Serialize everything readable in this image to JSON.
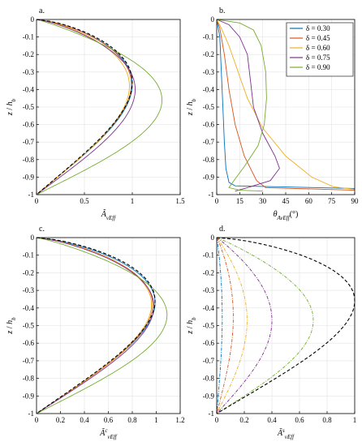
{
  "colors": {
    "0.30": "#0072BD",
    "0.45": "#D95319",
    "0.60": "#EDB120",
    "0.75": "#7E2F8E",
    "0.90": "#77AC30",
    "reference": "#000000"
  },
  "legend": {
    "entries": [
      "δ = 0.30",
      "δ = 0.45",
      "δ = 0.60",
      "δ = 0.75",
      "δ = 0.90"
    ],
    "placement": "top-right of panel b"
  },
  "chart_data": [
    {
      "type": "line",
      "panel_label": "a.",
      "xlabel": "Ã_vEff",
      "ylabel": "z / h_b",
      "xlim": [
        0,
        1.5
      ],
      "ylim": [
        -1,
        0
      ],
      "xticks": [
        "0",
        "0.5",
        "1",
        "1.5"
      ],
      "yticks": [
        "0",
        "-0.1",
        "-0.2",
        "-0.3",
        "-0.4",
        "-0.5",
        "-0.6",
        "-0.7",
        "-0.8",
        "-0.9",
        "-1"
      ],
      "grid": true,
      "series": [
        {
          "key": "0.30",
          "style": "solid",
          "peak": 1.0,
          "zpeak": -0.37
        },
        {
          "key": "0.45",
          "style": "solid",
          "peak": 0.99,
          "zpeak": -0.37
        },
        {
          "key": "0.60",
          "style": "solid",
          "peak": 0.97,
          "zpeak": -0.38
        },
        {
          "key": "0.75",
          "style": "solid",
          "peak": 1.03,
          "zpeak": -0.4
        },
        {
          "key": "0.90",
          "style": "solid",
          "peak": 1.31,
          "zpeak": -0.46
        },
        {
          "key": "reference",
          "style": "dashed",
          "peak": 1.0,
          "zpeak": -0.36
        }
      ]
    },
    {
      "type": "line",
      "panel_label": "b.",
      "xlabel": "θ_AvEff (°)",
      "ylabel": "z / h_b",
      "xlim": [
        0,
        90
      ],
      "ylim": [
        -1,
        0
      ],
      "xticks": [
        "0",
        "15",
        "30",
        "45",
        "60",
        "75",
        "90"
      ],
      "yticks": [
        "0",
        "-0.1",
        "-0.2",
        "-0.3",
        "-0.4",
        "-0.5",
        "-0.6",
        "-0.7",
        "-0.8",
        "-0.9",
        "-1"
      ],
      "grid": true,
      "series": [
        {
          "key": "0.30",
          "points": [
            [
              0,
              0
            ],
            [
              2,
              -0.1
            ],
            [
              3,
              -0.3
            ],
            [
              4,
              -0.5
            ],
            [
              5,
              -0.7
            ],
            [
              6,
              -0.85
            ],
            [
              8,
              -0.93
            ],
            [
              12,
              -0.95
            ],
            [
              90,
              -0.965
            ]
          ]
        },
        {
          "key": "0.45",
          "points": [
            [
              0,
              0
            ],
            [
              2,
              -0.05
            ],
            [
              5,
              -0.2
            ],
            [
              8,
              -0.4
            ],
            [
              12,
              -0.6
            ],
            [
              18,
              -0.78
            ],
            [
              26,
              -0.92
            ],
            [
              32,
              -0.96
            ],
            [
              90,
              -0.975
            ]
          ]
        },
        {
          "key": "0.60",
          "points": [
            [
              0,
              0
            ],
            [
              3,
              -0.05
            ],
            [
              8,
              -0.15
            ],
            [
              14,
              -0.3
            ],
            [
              20,
              -0.45
            ],
            [
              30,
              -0.62
            ],
            [
              45,
              -0.78
            ],
            [
              62,
              -0.9
            ],
            [
              76,
              -0.955
            ],
            [
              90,
              -0.97
            ]
          ]
        },
        {
          "key": "0.75",
          "points": [
            [
              0,
              0
            ],
            [
              8,
              -0.03
            ],
            [
              15,
              -0.1
            ],
            [
              20,
              -0.2
            ],
            [
              22,
              -0.35
            ],
            [
              24,
              -0.5
            ],
            [
              30,
              -0.65
            ],
            [
              38,
              -0.78
            ],
            [
              41,
              -0.85
            ],
            [
              35,
              -0.92
            ],
            [
              20,
              -0.96
            ],
            [
              12,
              -0.98
            ]
          ]
        },
        {
          "key": "0.90",
          "points": [
            [
              0,
              0
            ],
            [
              15,
              -0.02
            ],
            [
              24,
              -0.06
            ],
            [
              29,
              -0.15
            ],
            [
              32,
              -0.3
            ],
            [
              32.5,
              -0.45
            ],
            [
              31,
              -0.6
            ],
            [
              27,
              -0.72
            ],
            [
              18,
              -0.84
            ],
            [
              12,
              -0.91
            ],
            [
              8,
              -0.96
            ],
            [
              15,
              -0.975
            ],
            [
              30,
              -0.98
            ]
          ]
        }
      ]
    },
    {
      "type": "line",
      "panel_label": "c.",
      "xlabel": "Ã^c_vEff",
      "ylabel": "z / h_b",
      "xlim": [
        0,
        1.2
      ],
      "ylim": [
        -1,
        0
      ],
      "xticks": [
        "0",
        "0.2",
        "0.4",
        "0.6",
        "0.8",
        "1",
        "1.2"
      ],
      "yticks": [
        "0",
        "-0.1",
        "-0.2",
        "-0.3",
        "-0.4",
        "-0.5",
        "-0.6",
        "-0.7",
        "-0.8",
        "-0.9",
        "-1"
      ],
      "grid": true,
      "series": [
        {
          "key": "0.30",
          "style": "solid",
          "peak": 0.99,
          "zpeak": -0.37
        },
        {
          "key": "0.45",
          "style": "solid",
          "peak": 0.97,
          "zpeak": -0.38
        },
        {
          "key": "0.60",
          "style": "solid",
          "peak": 0.96,
          "zpeak": -0.38
        },
        {
          "key": "0.75",
          "style": "solid",
          "peak": 0.98,
          "zpeak": -0.39
        },
        {
          "key": "0.90",
          "style": "solid",
          "peak": 1.09,
          "zpeak": -0.44
        },
        {
          "key": "reference",
          "style": "dashed",
          "peak": 0.99,
          "zpeak": -0.36
        }
      ]
    },
    {
      "type": "line",
      "panel_label": "d.",
      "xlabel": "Ã^s_vEff",
      "ylabel": "z / h_b",
      "xlim": [
        0,
        1
      ],
      "ylim": [
        -1,
        0
      ],
      "xticks": [
        "0",
        "0.2",
        "0.4",
        "0.6",
        "0.8",
        "1"
      ],
      "yticks": [
        "0",
        "-0.1",
        "-0.2",
        "-0.3",
        "-0.4",
        "-0.5",
        "-0.6",
        "-0.7",
        "-0.8",
        "-0.9",
        "-1"
      ],
      "grid": true,
      "series": [
        {
          "key": "0.30",
          "style": "dashdot",
          "peak": 0.04,
          "zpeak": -0.45
        },
        {
          "key": "0.45",
          "style": "dashdot",
          "peak": 0.12,
          "zpeak": -0.45
        },
        {
          "key": "0.60",
          "style": "dashdot",
          "peak": 0.22,
          "zpeak": -0.47
        },
        {
          "key": "0.75",
          "style": "dashdot",
          "peak": 0.4,
          "zpeak": -0.47
        },
        {
          "key": "0.90",
          "style": "dashdot",
          "peak": 0.7,
          "zpeak": -0.47
        },
        {
          "key": "reference",
          "style": "dashed",
          "peak": 1.0,
          "zpeak": -0.36
        }
      ]
    }
  ]
}
